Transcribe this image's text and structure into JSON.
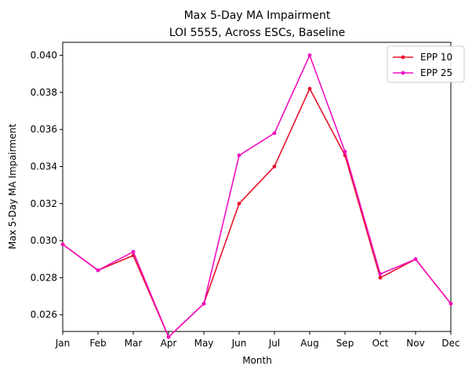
{
  "chart_data": {
    "type": "line",
    "title_lines": [
      "Max 5-Day MA Impairment",
      "LOI 5555, Across ESCs, Baseline"
    ],
    "xlabel": "Month",
    "ylabel": "Max 5-Day MA Impairment",
    "categories": [
      "Jan",
      "Feb",
      "Mar",
      "Apr",
      "May",
      "Jun",
      "Jul",
      "Aug",
      "Sep",
      "Oct",
      "Nov",
      "Dec"
    ],
    "ylim": [
      0.0251,
      0.0407
    ],
    "yticks": [
      "0.026",
      "0.028",
      "0.030",
      "0.032",
      "0.034",
      "0.036",
      "0.038",
      "0.040"
    ],
    "grid": false,
    "legend_position": "top-right",
    "series": [
      {
        "name": "EPP 10",
        "color": "#e8112d",
        "values": [
          0.0298,
          0.0284,
          0.0292,
          0.0248,
          0.0266,
          0.032,
          0.034,
          0.0382,
          0.0346,
          0.028,
          0.029,
          0.0266
        ]
      },
      {
        "name": "EPP 25",
        "color": "#f20fc0",
        "values": [
          0.0298,
          0.0284,
          0.0294,
          0.0248,
          0.0266,
          0.0346,
          0.0358,
          0.04,
          0.0348,
          0.0282,
          0.029,
          0.0266
        ]
      }
    ]
  }
}
